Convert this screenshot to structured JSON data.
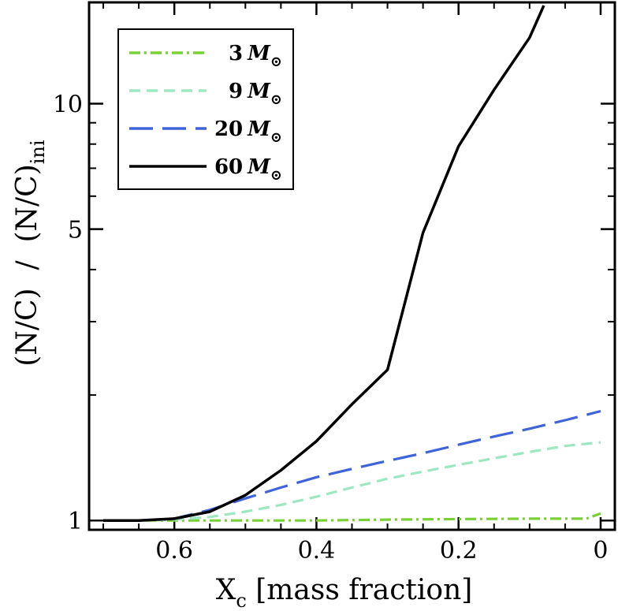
{
  "chart_data": {
    "type": "line",
    "xlabel": "X",
    "xlabel_sub": "c",
    "xlabel_suffix": " [mass fraction]",
    "ylabel": "(N/C)  /  (N/C)",
    "ylabel_sub": "ini",
    "xlim": [
      0.72,
      -0.02
    ],
    "ylim": [
      0.95,
      17.5
    ],
    "yscale": "log",
    "x_ticks": [
      {
        "value": 0.6,
        "label": "0.6"
      },
      {
        "value": 0.4,
        "label": "0.4"
      },
      {
        "value": 0.2,
        "label": "0.2"
      },
      {
        "value": 0.0,
        "label": "0"
      }
    ],
    "x_minor_ticks": [
      0.7,
      0.65,
      0.55,
      0.5,
      0.45,
      0.35,
      0.3,
      0.25,
      0.15,
      0.1,
      0.05
    ],
    "y_ticks": [
      {
        "value": 1,
        "label": "1"
      },
      {
        "value": 5,
        "label": "5"
      },
      {
        "value": 10,
        "label": "10"
      }
    ],
    "y_minor_ticks": [
      2,
      3,
      4,
      6,
      7,
      8,
      9
    ],
    "legend_position": "top-left",
    "series": [
      {
        "name": "3",
        "unit": "M",
        "unit_sub": "⊙",
        "color": "#7ad136",
        "dash": "14 5 3 5",
        "x": [
          0.7,
          0.6,
          0.5,
          0.4,
          0.3,
          0.2,
          0.1,
          0.02,
          0.0
        ],
        "y": [
          1.0,
          1.0,
          1.0,
          1.0,
          1.005,
          1.008,
          1.01,
          1.01,
          1.04
        ]
      },
      {
        "name": "9",
        "unit": "M",
        "unit_sub": "⊙",
        "color": "#9de8c2",
        "dash": "14 8",
        "x": [
          0.7,
          0.65,
          0.6,
          0.55,
          0.5,
          0.45,
          0.4,
          0.35,
          0.3,
          0.25,
          0.2,
          0.15,
          0.1,
          0.05,
          0.0
        ],
        "y": [
          1.0,
          1.0,
          1.005,
          1.02,
          1.05,
          1.09,
          1.14,
          1.2,
          1.26,
          1.31,
          1.36,
          1.41,
          1.46,
          1.51,
          1.54
        ]
      },
      {
        "name": "20",
        "unit": "M",
        "unit_sub": "⊙",
        "color": "#3f63d8",
        "dash": "30 12",
        "x": [
          0.7,
          0.65,
          0.6,
          0.55,
          0.5,
          0.45,
          0.4,
          0.35,
          0.3,
          0.25,
          0.2,
          0.15,
          0.1,
          0.05,
          0.0
        ],
        "y": [
          1.0,
          1.0,
          1.01,
          1.06,
          1.13,
          1.2,
          1.27,
          1.33,
          1.39,
          1.45,
          1.52,
          1.59,
          1.66,
          1.74,
          1.83
        ]
      },
      {
        "name": "60",
        "unit": "M",
        "unit_sub": "⊙",
        "color": "#000000",
        "dash": "",
        "x": [
          0.7,
          0.65,
          0.6,
          0.55,
          0.5,
          0.45,
          0.4,
          0.35,
          0.3,
          0.25,
          0.2,
          0.15,
          0.1,
          0.08
        ],
        "y": [
          1.0,
          1.0,
          1.01,
          1.05,
          1.15,
          1.32,
          1.55,
          1.9,
          2.3,
          4.9,
          7.9,
          10.8,
          14.4,
          17.2
        ]
      }
    ]
  }
}
